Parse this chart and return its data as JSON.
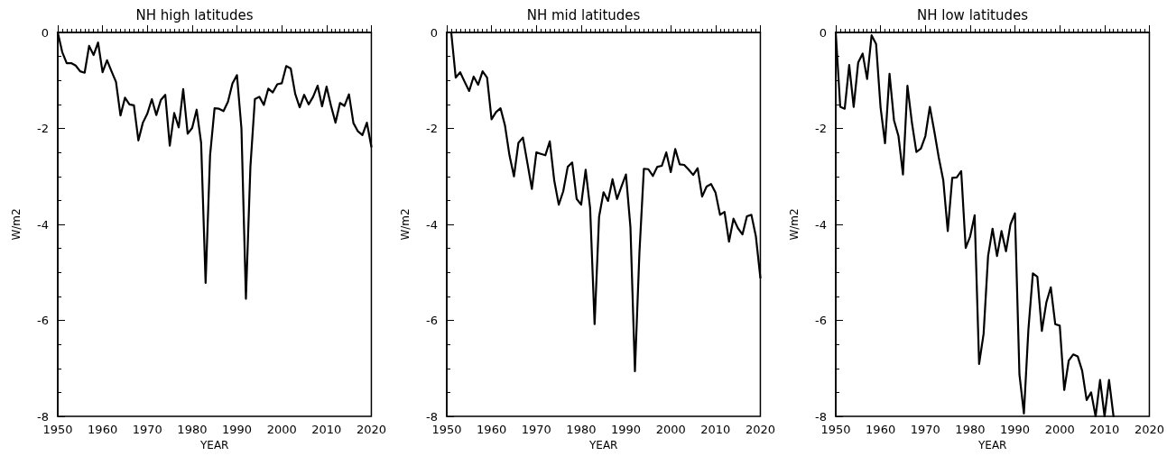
{
  "chart_data": [
    {
      "type": "line",
      "title": "NH high latitudes",
      "xlabel": "YEAR",
      "ylabel": "W/m2",
      "color": "#000000",
      "line_style": "solid",
      "marker": "none",
      "grid": false,
      "x": [
        1950,
        1951,
        1952,
        1953,
        1954,
        1955,
        1956,
        1957,
        1958,
        1959,
        1960,
        1961,
        1962,
        1963,
        1964,
        1965,
        1966,
        1967,
        1968,
        1969,
        1970,
        1971,
        1972,
        1973,
        1974,
        1975,
        1976,
        1977,
        1978,
        1979,
        1980,
        1981,
        1982,
        1983,
        1984,
        1985,
        1986,
        1987,
        1988,
        1989,
        1990,
        1991,
        1992,
        1993,
        1994,
        1995,
        1996,
        1997,
        1998,
        1999,
        2000,
        2001,
        2002,
        2003,
        2004,
        2005,
        2006,
        2007,
        2008,
        2009,
        2010,
        2011,
        2012,
        2013,
        2014,
        2015,
        2016,
        2017,
        2018,
        2019,
        2020
      ],
      "values": [
        0,
        -0.41,
        -0.64,
        -0.64,
        -0.69,
        -0.81,
        -0.84,
        -0.28,
        -0.47,
        -0.21,
        -0.83,
        -0.58,
        -0.81,
        -1.03,
        -1.73,
        -1.36,
        -1.5,
        -1.52,
        -2.25,
        -1.88,
        -1.69,
        -1.39,
        -1.72,
        -1.41,
        -1.3,
        -2.36,
        -1.68,
        -1.98,
        -1.18,
        -2.11,
        -1.99,
        -1.61,
        -2.3,
        -5.22,
        -2.56,
        -1.58,
        -1.59,
        -1.64,
        -1.44,
        -1.06,
        -0.89,
        -2.0,
        -5.55,
        -2.8,
        -1.39,
        -1.34,
        -1.51,
        -1.17,
        -1.25,
        -1.08,
        -1.06,
        -0.7,
        -0.75,
        -1.28,
        -1.56,
        -1.3,
        -1.5,
        -1.34,
        -1.11,
        -1.54,
        -1.13,
        -1.53,
        -1.88,
        -1.47,
        -1.53,
        -1.29,
        -1.89,
        -2.06,
        -2.14,
        -1.88,
        -2.38
      ],
      "xlim": [
        1950,
        2020
      ],
      "xticks": [
        1950,
        1960,
        1970,
        1980,
        1990,
        2000,
        2010,
        2020
      ],
      "ylim": [
        -8,
        0
      ],
      "yticks": [
        -8,
        -6,
        -4,
        -2,
        0
      ]
    },
    {
      "type": "line",
      "title": "NH mid latitudes",
      "xlabel": "YEAR",
      "ylabel": "W/m2",
      "color": "#000000",
      "line_style": "solid",
      "marker": "none",
      "grid": false,
      "x": [
        1950,
        1951,
        1952,
        1953,
        1954,
        1955,
        1956,
        1957,
        1958,
        1959,
        1960,
        1961,
        1962,
        1963,
        1964,
        1965,
        1966,
        1967,
        1968,
        1969,
        1970,
        1971,
        1972,
        1973,
        1974,
        1975,
        1976,
        1977,
        1978,
        1979,
        1980,
        1981,
        1982,
        1983,
        1984,
        1985,
        1986,
        1987,
        1988,
        1989,
        1990,
        1991,
        1992,
        1993,
        1994,
        1995,
        1996,
        1997,
        1998,
        1999,
        2000,
        2001,
        2002,
        2003,
        2004,
        2005,
        2006,
        2007,
        2008,
        2009,
        2010,
        2011,
        2012,
        2013,
        2014,
        2015,
        2016,
        2017,
        2018,
        2019,
        2020
      ],
      "values": [
        0,
        0,
        -0.94,
        -0.83,
        -1.03,
        -1.22,
        -0.92,
        -1.09,
        -0.81,
        -0.94,
        -1.81,
        -1.66,
        -1.58,
        -1.94,
        -2.56,
        -3.0,
        -2.3,
        -2.19,
        -2.72,
        -3.26,
        -2.5,
        -2.53,
        -2.56,
        -2.27,
        -3.09,
        -3.59,
        -3.31,
        -2.8,
        -2.71,
        -3.47,
        -3.59,
        -2.86,
        -3.66,
        -6.08,
        -3.84,
        -3.33,
        -3.51,
        -3.06,
        -3.47,
        -3.21,
        -2.96,
        -4.06,
        -7.06,
        -4.6,
        -2.84,
        -2.85,
        -2.99,
        -2.8,
        -2.78,
        -2.5,
        -2.91,
        -2.43,
        -2.75,
        -2.76,
        -2.86,
        -2.97,
        -2.83,
        -3.42,
        -3.21,
        -3.16,
        -3.34,
        -3.8,
        -3.74,
        -4.36,
        -3.88,
        -4.08,
        -4.21,
        -3.83,
        -3.8,
        -4.25,
        -5.11
      ],
      "xlim": [
        1950,
        2020
      ],
      "xticks": [
        1950,
        1960,
        1970,
        1980,
        1990,
        2000,
        2010,
        2020
      ],
      "ylim": [
        -8,
        0
      ],
      "yticks": [
        -8,
        -6,
        -4,
        -2,
        0
      ]
    },
    {
      "type": "line",
      "title": "NH low latitudes",
      "xlabel": "YEAR",
      "ylabel": "W/m2",
      "color": "#000000",
      "line_style": "solid",
      "marker": "none",
      "grid": false,
      "x": [
        1950,
        1951,
        1952,
        1953,
        1954,
        1955,
        1956,
        1957,
        1958,
        1959,
        1960,
        1961,
        1962,
        1963,
        1964,
        1965,
        1966,
        1967,
        1968,
        1969,
        1970,
        1971,
        1972,
        1973,
        1974,
        1975,
        1976,
        1977,
        1978,
        1979,
        1980,
        1981,
        1982,
        1983,
        1984,
        1985,
        1986,
        1987,
        1988,
        1989,
        1990,
        1991,
        1992,
        1993,
        1994,
        1995,
        1996,
        1997,
        1998,
        1999,
        2000,
        2001,
        2002,
        2003,
        2004,
        2005,
        2006,
        2007,
        2008,
        2009,
        2010,
        2011,
        2012
      ],
      "values": [
        0,
        -1.55,
        -1.59,
        -0.68,
        -1.55,
        -0.63,
        -0.44,
        -0.97,
        -0.06,
        -0.24,
        -1.56,
        -2.31,
        -0.86,
        -1.83,
        -2.16,
        -2.96,
        -1.11,
        -1.88,
        -2.49,
        -2.42,
        -2.16,
        -1.55,
        -2.06,
        -2.61,
        -3.08,
        -4.14,
        -3.03,
        -3.02,
        -2.89,
        -4.49,
        -4.25,
        -3.81,
        -6.91,
        -6.28,
        -4.66,
        -4.09,
        -4.66,
        -4.14,
        -4.56,
        -4.0,
        -3.77,
        -7.13,
        -7.94,
        -6.19,
        -5.02,
        -5.09,
        -6.22,
        -5.63,
        -5.31,
        -6.08,
        -6.11,
        -7.45,
        -6.84,
        -6.71,
        -6.75,
        -7.05,
        -7.66,
        -7.5,
        -8,
        -7.24,
        -8,
        -7.24,
        -8
      ],
      "xlim": [
        1950,
        2020
      ],
      "xticks": [
        1950,
        1960,
        1970,
        1980,
        1990,
        2000,
        2010,
        2020
      ],
      "ylim": [
        -8,
        0
      ],
      "yticks": [
        -8,
        -6,
        -4,
        -2,
        0
      ]
    }
  ]
}
